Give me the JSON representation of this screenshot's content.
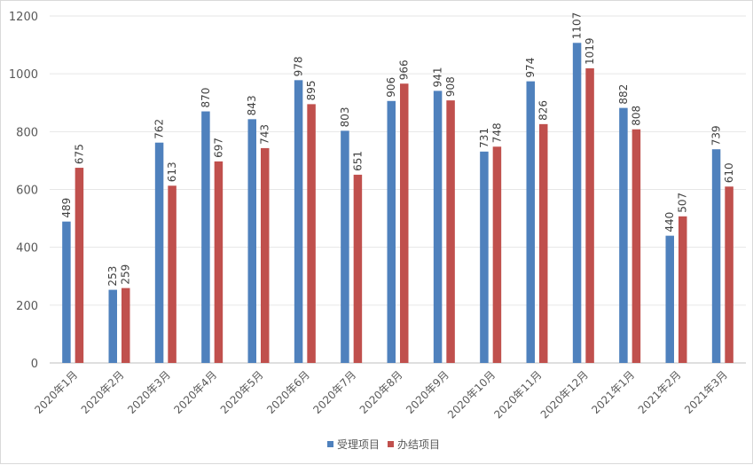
{
  "chart_data": {
    "type": "bar",
    "categories": [
      "2020年1月",
      "2020年2月",
      "2020年3月",
      "2020年4月",
      "2020年5月",
      "2020年6月",
      "2020年7月",
      "2020年8月",
      "2020年9月",
      "2020年10月",
      "2020年11月",
      "2020年12月",
      "2021年1月",
      "2021年2月",
      "2021年3月"
    ],
    "series": [
      {
        "name": "受理项目",
        "color": "#4f81bd",
        "values": [
          489,
          253,
          762,
          870,
          843,
          978,
          803,
          906,
          941,
          731,
          974,
          1107,
          882,
          440,
          739
        ]
      },
      {
        "name": "办结项目",
        "color": "#c0504d",
        "values": [
          675,
          259,
          613,
          697,
          743,
          895,
          651,
          966,
          908,
          748,
          826,
          1019,
          808,
          507,
          610
        ]
      }
    ],
    "ylim": [
      0,
      1200
    ],
    "yticks": [
      0,
      200,
      400,
      600,
      800,
      1000,
      1200
    ],
    "grid": true,
    "legend_position": "bottom",
    "data_label_orientation": "vertical"
  }
}
